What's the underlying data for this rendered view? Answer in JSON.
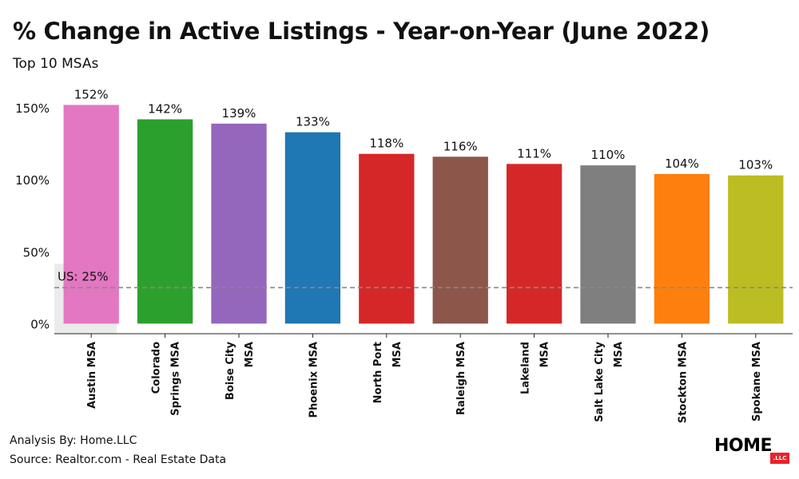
{
  "header": {
    "title": "% Change in Active Listings - Year-on-Year (June 2022)",
    "subtitle": "Top 10 MSAs"
  },
  "footer": {
    "analysis": "Analysis By: Home.LLC",
    "source": "Source: Realtor.com - Real Estate Data"
  },
  "brand": {
    "logo_text": "HOME",
    "logo_badge": ".LLC"
  },
  "chart_data": {
    "type": "bar",
    "title": "% Change in Active Listings - Year-on-Year (June 2022)",
    "subtitle": "Top 10 MSAs",
    "categories": [
      [
        "Austin MSA"
      ],
      [
        "Colorado",
        "Springs MSA"
      ],
      [
        "Boise City",
        "MSA"
      ],
      [
        "Phoenix MSA"
      ],
      [
        "North Port",
        "MSA"
      ],
      [
        "Raleigh MSA"
      ],
      [
        "Lakeland",
        "MSA"
      ],
      [
        "Salt Lake City",
        "MSA"
      ],
      [
        "Stockton MSA"
      ],
      [
        "Spokane MSA"
      ]
    ],
    "values": [
      152,
      142,
      139,
      133,
      118,
      116,
      111,
      110,
      104,
      103
    ],
    "value_labels": [
      "152%",
      "142%",
      "139%",
      "133%",
      "118%",
      "116%",
      "111%",
      "110%",
      "104%",
      "103%"
    ],
    "colors": [
      "#e377c2",
      "#2ca02c",
      "#9467bd",
      "#1f77b4",
      "#d62728",
      "#8c564b",
      "#d62728",
      "#7f7f7f",
      "#ff7f0e",
      "#bcbd22"
    ],
    "yticks": [
      0,
      50,
      100,
      150
    ],
    "ytick_labels": [
      "0%",
      "50%",
      "100%",
      "150%"
    ],
    "ylim": [
      -7,
      165
    ],
    "reference_line": {
      "value": 25,
      "label": "US: 25%",
      "color": "#888888"
    },
    "xlabel": "",
    "ylabel": "",
    "grid": false
  }
}
